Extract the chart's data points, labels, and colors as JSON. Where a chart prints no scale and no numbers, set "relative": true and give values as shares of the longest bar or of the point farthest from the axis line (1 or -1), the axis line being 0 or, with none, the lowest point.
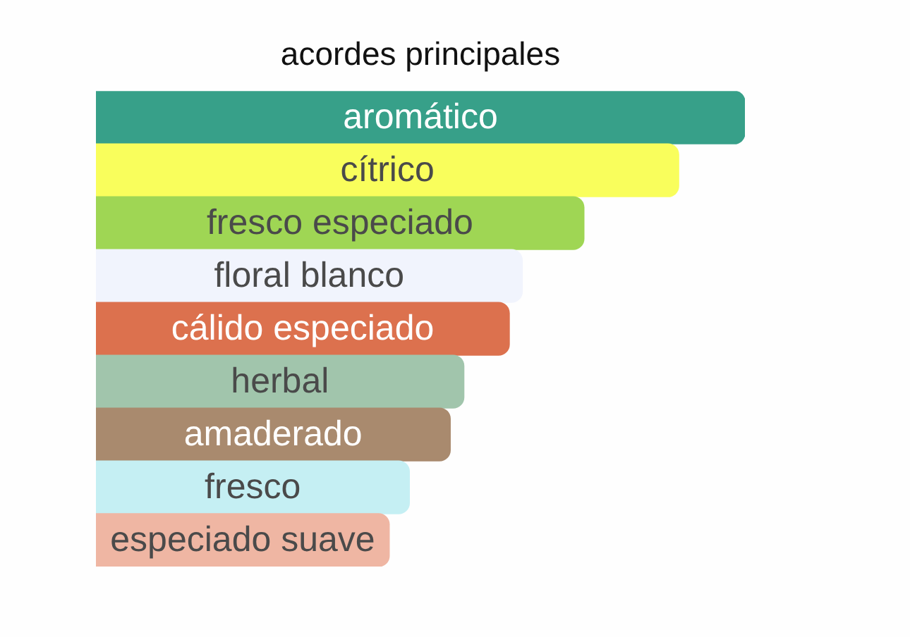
{
  "chart_data": {
    "type": "bar",
    "orientation": "horizontal",
    "relative": true,
    "title": "acordes principales",
    "categories": [
      "aromático",
      "cítrico",
      "fresco especiado",
      "floral blanco",
      "cálido especiado",
      "herbal",
      "amaderado",
      "fresco",
      "especiado suave"
    ],
    "values": [
      1,
      0.898,
      0.752,
      0.657,
      0.637,
      0.567,
      0.546,
      0.483,
      0.452
    ],
    "colors": [
      "#37a089",
      "#f9fe5c",
      "#9fd654",
      "#f1f4fd",
      "#dc714e",
      "#a1c5ac",
      "#a98a6e",
      "#c5eff3",
      "#efb6a3"
    ]
  }
}
